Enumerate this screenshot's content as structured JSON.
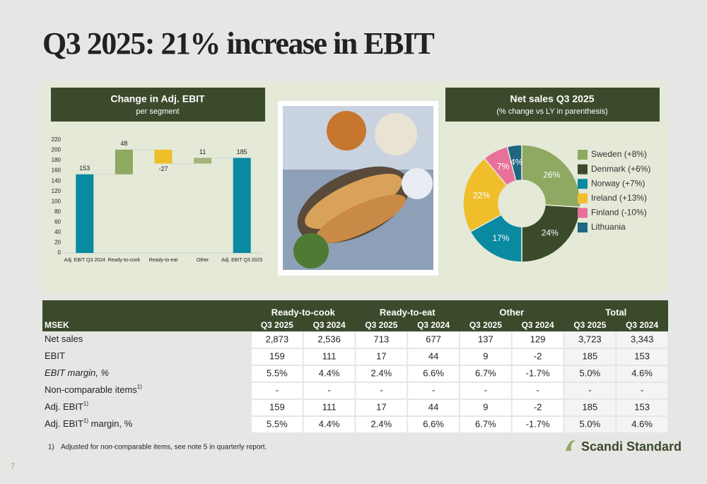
{
  "title": "Q3 2025: 21% increase in EBIT",
  "chart_data": [
    {
      "type": "waterfall",
      "title": "Change in Adj. EBIT",
      "subtitle": "per segment",
      "categories": [
        "Adj. EBIT Q3 2024",
        "Ready-to-cook",
        "Ready-to-eat",
        "Other",
        "Adj. EBIT Q3 2025"
      ],
      "values": [
        153,
        48,
        -27,
        11,
        185
      ],
      "colors": [
        "#0a8aa0",
        "#8fa862",
        "#f0be2b",
        "#a4b47a",
        "#0a8aa0"
      ],
      "ylim": [
        0,
        220
      ],
      "yticks": [
        0,
        20,
        40,
        60,
        80,
        100,
        120,
        140,
        160,
        180,
        200,
        220
      ],
      "grid": false
    },
    {
      "type": "donut",
      "title": "Net sales Q3 2025",
      "subtitle": "(% change vs LY in parenthesis)",
      "categories": [
        "Sweden  (+8%)",
        "Denmark (+6%)",
        "Norway (+7%)",
        "Ireland (+13%)",
        "Finland (-10%)",
        "Lithuania"
      ],
      "values": [
        26,
        24,
        17,
        22,
        7,
        4
      ],
      "value_labels": [
        "26%",
        "24%",
        "17%",
        "22%",
        "7%",
        "4%"
      ],
      "colors": [
        "#8fa862",
        "#3a4a2a",
        "#0a8aa0",
        "#f0be2b",
        "#e8719a",
        "#1f6680"
      ],
      "legend": "right"
    }
  ],
  "table": {
    "corner": "MSEK",
    "groups": [
      "Ready-to-cook",
      "Ready-to-eat",
      "Other",
      "Total"
    ],
    "columns": [
      "Q3 2025",
      "Q3 2024",
      "Q3 2025",
      "Q3 2024",
      "Q3 2025",
      "Q3 2024",
      "Q3 2025",
      "Q3 2024"
    ],
    "rows": [
      {
        "label": [
          "Net sales"
        ],
        "cells": [
          "2,873",
          "2,536",
          "713",
          "677",
          "137",
          "129",
          "3,723",
          "3,343"
        ]
      },
      {
        "label": [
          "EBIT"
        ],
        "cells": [
          "159",
          "111",
          "17",
          "44",
          "9",
          "-2",
          "185",
          "153"
        ]
      },
      {
        "label": [
          "EBIT margin, %"
        ],
        "italic": true,
        "cells": [
          "5.5%",
          "4.4%",
          "2.4%",
          "6.6%",
          "6.7%",
          "-1.7%",
          "5.0%",
          "4.6%"
        ]
      },
      {
        "label": [
          "Non-comparable items",
          {
            "sup": "1)"
          }
        ],
        "cells": [
          "-",
          "-",
          "-",
          "-",
          "-",
          "-",
          "-",
          "-"
        ]
      },
      {
        "label": [
          "Adj. EBIT",
          {
            "sup": "1)"
          }
        ],
        "cells": [
          "159",
          "111",
          "17",
          "44",
          "9",
          "-2",
          "185",
          "153"
        ]
      },
      {
        "label": [
          "Adj. EBIT",
          {
            "sup": "1)"
          },
          " margin, %"
        ],
        "cells": [
          "5.5%",
          "4.4%",
          "2.4%",
          "6.6%",
          "6.7%",
          "-1.7%",
          "5.0%",
          "4.6%"
        ]
      }
    ]
  },
  "footnote": {
    "marker": "1)",
    "text": "Adjusted for non-comparable items, see note 5 in quarterly report."
  },
  "logo": "Scandi Standard",
  "page_number": "7"
}
